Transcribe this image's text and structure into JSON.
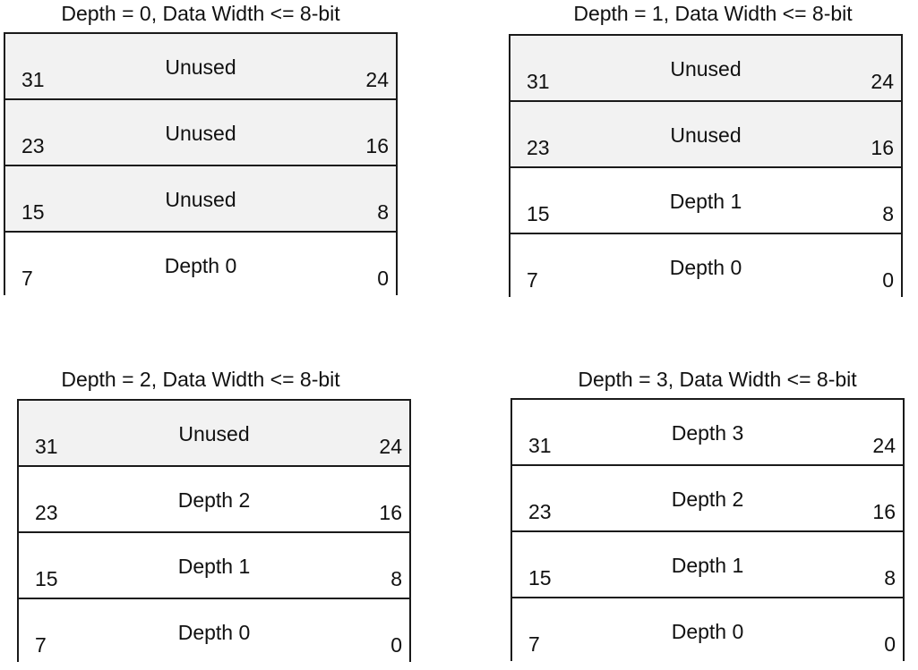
{
  "panels": [
    {
      "title": "Depth = 0, Data Width <= 8-bit",
      "rows": [
        {
          "label": "Unused",
          "msb": "31",
          "lsb": "24",
          "unused": true
        },
        {
          "label": "Unused",
          "msb": "23",
          "lsb": "16",
          "unused": true
        },
        {
          "label": "Unused",
          "msb": "15",
          "lsb": "8",
          "unused": true
        },
        {
          "label": "Depth 0",
          "msb": "7",
          "lsb": "0",
          "unused": false
        }
      ]
    },
    {
      "title": "Depth = 1, Data Width <= 8-bit",
      "rows": [
        {
          "label": "Unused",
          "msb": "31",
          "lsb": "24",
          "unused": true
        },
        {
          "label": "Unused",
          "msb": "23",
          "lsb": "16",
          "unused": true
        },
        {
          "label": "Depth 1",
          "msb": "15",
          "lsb": "8",
          "unused": false
        },
        {
          "label": "Depth 0",
          "msb": "7",
          "lsb": "0",
          "unused": false
        }
      ]
    },
    {
      "title": "Depth = 2, Data Width <= 8-bit",
      "rows": [
        {
          "label": "Unused",
          "msb": "31",
          "lsb": "24",
          "unused": true
        },
        {
          "label": "Depth 2",
          "msb": "23",
          "lsb": "16",
          "unused": false
        },
        {
          "label": "Depth 1",
          "msb": "15",
          "lsb": "8",
          "unused": false
        },
        {
          "label": "Depth 0",
          "msb": "7",
          "lsb": "0",
          "unused": false
        }
      ]
    },
    {
      "title": "Depth = 3, Data Width <= 8-bit",
      "rows": [
        {
          "label": "Depth 3",
          "msb": "31",
          "lsb": "24",
          "unused": false
        },
        {
          "label": "Depth 2",
          "msb": "23",
          "lsb": "16",
          "unused": false
        },
        {
          "label": "Depth 1",
          "msb": "15",
          "lsb": "8",
          "unused": false
        },
        {
          "label": "Depth 0",
          "msb": "7",
          "lsb": "0",
          "unused": false
        }
      ]
    }
  ],
  "colors": {
    "unused_fill": "#f2f2f2",
    "used_fill": "#ffffff",
    "border": "#1a1a1a"
  }
}
